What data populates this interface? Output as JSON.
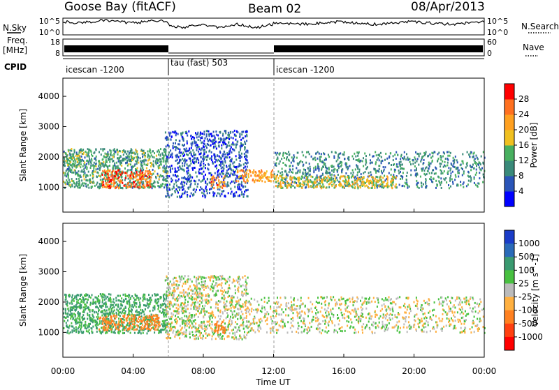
{
  "header": {
    "station": "Goose Bay (fitACF)",
    "beam": "Beam 02",
    "date": "08/Apr/2013"
  },
  "noise_panel": {
    "left_label": "N.Sky",
    "right_label": "N.Search",
    "left_ticks": [
      "10^5",
      "10^0"
    ],
    "right_ticks": [
      "10^5",
      "10^0"
    ]
  },
  "freq_panel": {
    "left_label_1": "Freq.",
    "left_label_2": "[MHz]",
    "right_label": "Nave",
    "left_ticks": [
      "18",
      "8"
    ],
    "right_ticks": [
      "60",
      "0"
    ]
  },
  "cpid_panel": {
    "label": "CPID",
    "segments": [
      {
        "start_hour": 0,
        "end_hour": 6,
        "text": "icescan -1200"
      },
      {
        "start_hour": 6,
        "end_hour": 12,
        "text": "tau (fast) 503"
      },
      {
        "start_hour": 12,
        "end_hour": 24,
        "text": "icescan -1200"
      }
    ]
  },
  "axes": {
    "x_label": "Time UT",
    "x_ticks": [
      "00:00",
      "04:00",
      "08:00",
      "12:00",
      "16:00",
      "20:00",
      "00:00"
    ],
    "x_tick_hours": [
      0,
      4,
      8,
      12,
      16,
      20,
      24
    ],
    "y_label": "Slant Range [km]",
    "y_ticks": [
      "1000",
      "2000",
      "3000",
      "4000"
    ],
    "y_tick_values": [
      1000,
      2000,
      3000,
      4000
    ],
    "y_range": [
      180,
      4600
    ],
    "x_range": [
      0,
      24
    ]
  },
  "chart_data": [
    {
      "type": "heatmap",
      "panel": "power",
      "x_unit": "hour UT",
      "y_unit": "km",
      "ylim": [
        180,
        4600
      ],
      "xlim": [
        0,
        24
      ],
      "colorbar": {
        "label": "Power [dB]",
        "ticks": [
          "4",
          "8",
          "12",
          "16",
          "20",
          "24",
          "28"
        ],
        "colors": [
          "#0000ff",
          "#2a55b8",
          "#3a8a7a",
          "#48b060",
          "#f0c020",
          "#ffa020",
          "#ff7020",
          "#ff0000"
        ]
      },
      "regions": [
        {
          "x": [
            0.0,
            5.9
          ],
          "y": [
            1000,
            2300
          ],
          "power_db": 12
        },
        {
          "x": [
            2.2,
            5.0
          ],
          "y": [
            1000,
            1600
          ],
          "power_db": 26
        },
        {
          "x": [
            0.0,
            1.0
          ],
          "y": [
            1700,
            2100
          ],
          "power_db": 14
        },
        {
          "x": [
            5.8,
            10.5
          ],
          "y": [
            700,
            2900
          ],
          "power_db": 6
        },
        {
          "x": [
            8.4,
            9.2
          ],
          "y": [
            1000,
            1400
          ],
          "power_db": 24
        },
        {
          "x": [
            9.8,
            12.0
          ],
          "y": [
            1200,
            1600
          ],
          "power_db": 22
        },
        {
          "x": [
            12.0,
            24.0
          ],
          "y": [
            1000,
            2200
          ],
          "power_db": 10
        },
        {
          "x": [
            12.0,
            19.0
          ],
          "y": [
            1000,
            1400
          ],
          "power_db": 18
        }
      ]
    },
    {
      "type": "heatmap",
      "panel": "velocity",
      "x_unit": "hour UT",
      "y_unit": "km",
      "ylim": [
        180,
        4600
      ],
      "xlim": [
        0,
        24
      ],
      "colorbar": {
        "label": "Velocity [m s^-1]",
        "ticks": [
          "1000",
          "500",
          "100",
          "25",
          "-25",
          "-100",
          "-500",
          "-1000"
        ],
        "colors": [
          "#1a3cc8",
          "#2a6ab8",
          "#3a9a70",
          "#48c040",
          "#bbbbbb",
          "#ffb040",
          "#ff8020",
          "#ff4010",
          "#ff0000"
        ]
      },
      "regions": [
        {
          "x": [
            0.0,
            5.9
          ],
          "y": [
            1000,
            2300
          ],
          "velocity": 120
        },
        {
          "x": [
            2.0,
            5.5
          ],
          "y": [
            1100,
            1600
          ],
          "velocity": -150
        },
        {
          "x": [
            5.8,
            10.5
          ],
          "y": [
            800,
            2900
          ],
          "velocity": 0
        },
        {
          "x": [
            8.6,
            9.3
          ],
          "y": [
            1000,
            1400
          ],
          "velocity": -400
        },
        {
          "x": [
            10.5,
            24.0
          ],
          "y": [
            1000,
            2200
          ],
          "velocity": 0
        }
      ]
    }
  ]
}
